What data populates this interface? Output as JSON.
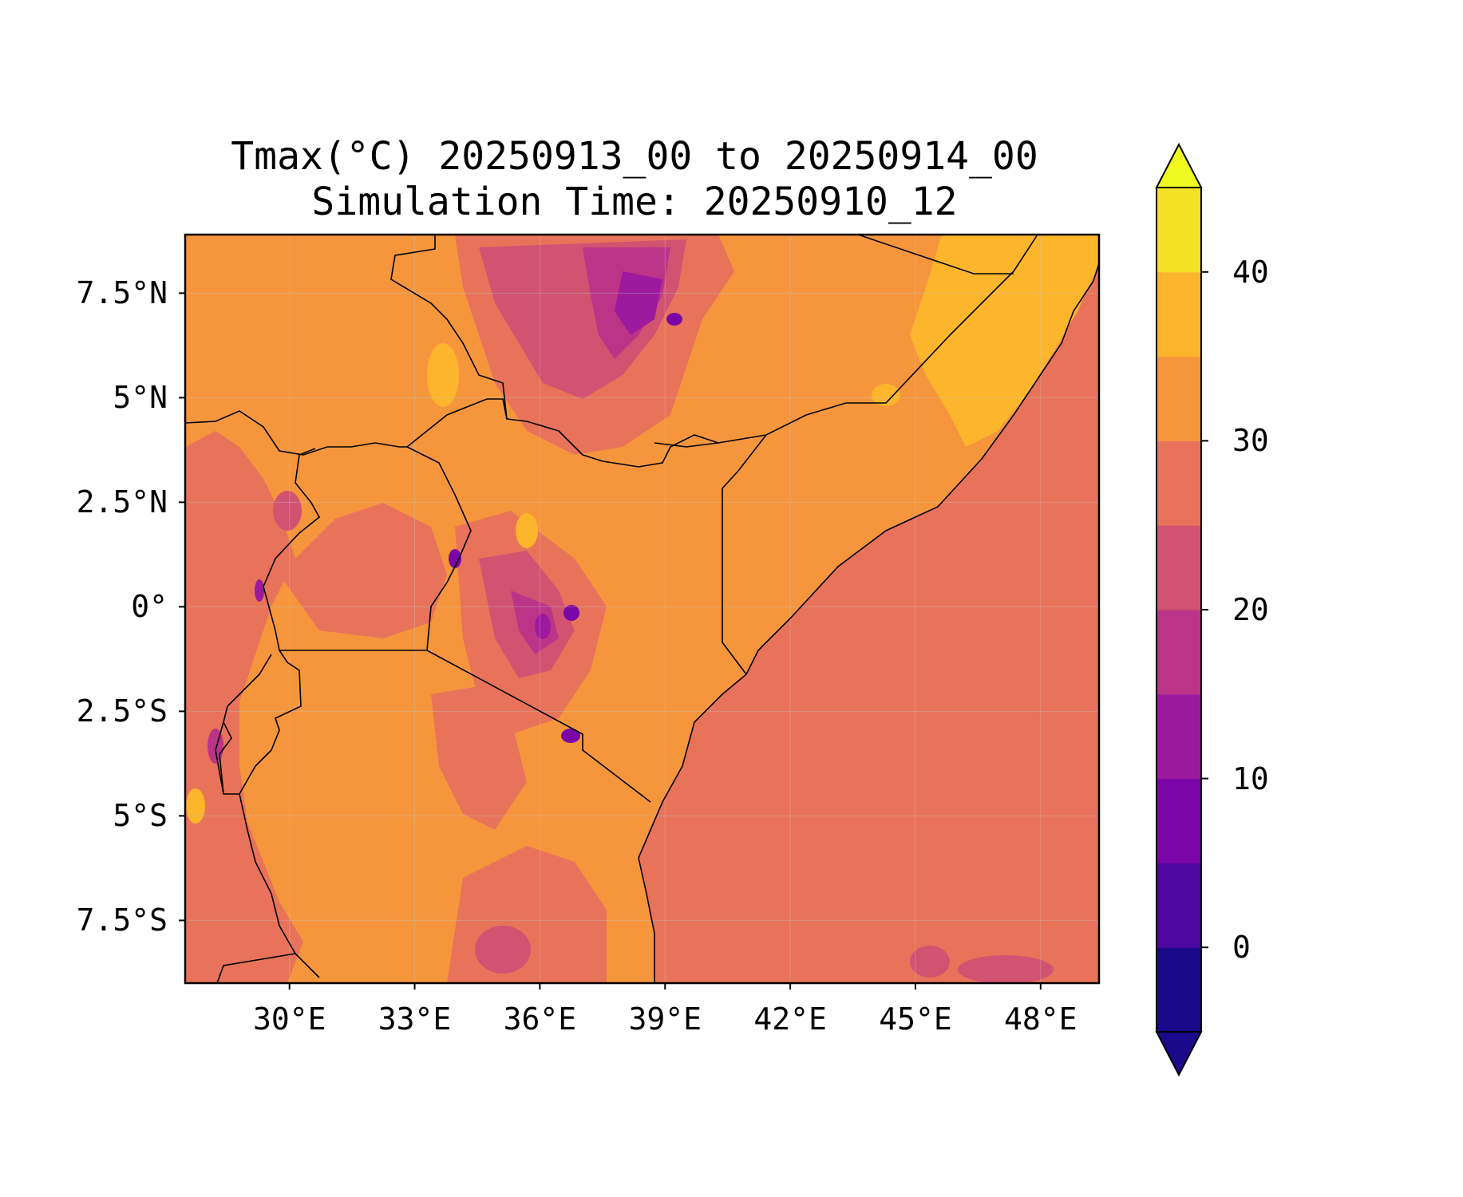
{
  "title": {
    "line1": "Tmax(°C) 20250913_00 to 20250914_00",
    "line2": "Simulation Time: 20250910_12"
  },
  "map": {
    "lon_range": [
      27.5,
      49.4
    ],
    "lat_range": [
      -9.0,
      8.9
    ],
    "lat_ticks": [
      {
        "value": 7.5,
        "label": "7.5°N"
      },
      {
        "value": 5,
        "label": "5°N"
      },
      {
        "value": 2.5,
        "label": "2.5°N"
      },
      {
        "value": 0,
        "label": "0°"
      },
      {
        "value": -2.5,
        "label": "2.5°S"
      },
      {
        "value": -5,
        "label": "5°S"
      },
      {
        "value": -7.5,
        "label": "7.5°S"
      }
    ],
    "lon_ticks": [
      {
        "value": 30,
        "label": "30°E"
      },
      {
        "value": 33,
        "label": "33°E"
      },
      {
        "value": 36,
        "label": "36°E"
      },
      {
        "value": 39,
        "label": "39°E"
      },
      {
        "value": 42,
        "label": "42°E"
      },
      {
        "value": 45,
        "label": "45°E"
      },
      {
        "value": 48,
        "label": "48°E"
      }
    ],
    "ocean_value": 27,
    "land_base_value": 32
  },
  "colorbar": {
    "levels": [
      -5,
      0,
      5,
      10,
      15,
      20,
      25,
      30,
      35,
      40,
      45
    ],
    "colors": [
      "#1a0a8a",
      "#4d06a0",
      "#7a06a8",
      "#9c1a9e",
      "#bb3488",
      "#d25272",
      "#e8735a",
      "#f5963d",
      "#fdb52c",
      "#f4e024",
      "#f0f921"
    ],
    "extend": "both",
    "ticks": [
      {
        "value": 0,
        "label": "0"
      },
      {
        "value": 10,
        "label": "10"
      },
      {
        "value": 20,
        "label": "20"
      },
      {
        "value": 30,
        "label": "30"
      },
      {
        "value": 40,
        "label": "40"
      }
    ]
  }
}
